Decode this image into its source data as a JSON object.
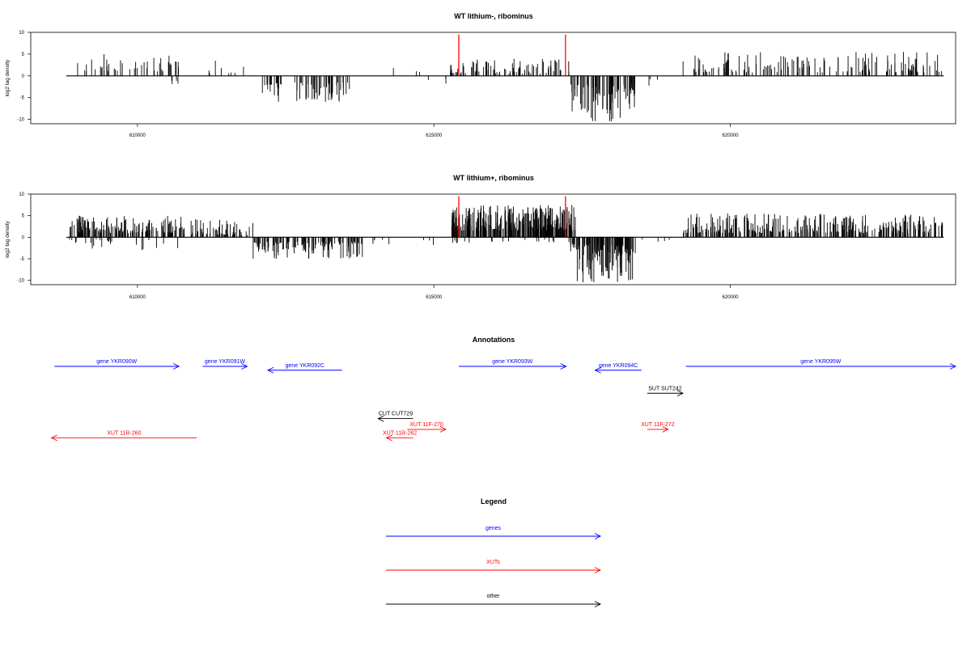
{
  "chart_data": [
    {
      "type": "bar",
      "title": "WT lithium-, ribominus",
      "ylabel": "log2 tag density",
      "ylim": [
        -11,
        10
      ],
      "yticks": [
        10,
        5,
        0,
        -5,
        -10
      ],
      "xlim": [
        608200,
        623800
      ],
      "xticks": [
        610000,
        615000,
        620000
      ],
      "xtick_labels": [
        "610000",
        "615000",
        "620000"
      ],
      "baseline": [
        608800,
        623600
      ],
      "markers": [
        {
          "x": 615420,
          "top": 9.5,
          "color": "#ff0000"
        },
        {
          "x": 617220,
          "top": 9.5,
          "color": "#ff0000"
        }
      ],
      "regions": [
        {
          "start": 608850,
          "end": 610700,
          "dir": 1,
          "lo": 1,
          "hi": 5,
          "n": 45,
          "seed": 11
        },
        {
          "start": 610550,
          "end": 610800,
          "dir": -1,
          "lo": 1,
          "hi": 3.5,
          "n": 4,
          "seed": 12
        },
        {
          "start": 611200,
          "end": 611800,
          "dir": 1,
          "lo": 0.5,
          "hi": 3.5,
          "n": 8,
          "seed": 13
        },
        {
          "start": 612100,
          "end": 613600,
          "dir": -1,
          "lo": 1.5,
          "hi": 6,
          "n": 70,
          "seed": 14
        },
        {
          "start": 614200,
          "end": 614900,
          "dir": 1,
          "lo": 0.5,
          "hi": 2,
          "n": 3,
          "seed": 15
        },
        {
          "start": 614900,
          "end": 615300,
          "dir": -1,
          "lo": 0.5,
          "hi": 2,
          "n": 3,
          "seed": 16
        },
        {
          "start": 615250,
          "end": 617300,
          "dir": 1,
          "lo": 0.5,
          "hi": 4,
          "n": 90,
          "seed": 17
        },
        {
          "start": 617300,
          "end": 618400,
          "dir": -1,
          "lo": 2,
          "hi": 10.5,
          "n": 80,
          "seed": 18
        },
        {
          "start": 618500,
          "end": 618900,
          "dir": -1,
          "lo": 0.5,
          "hi": 2.5,
          "n": 3,
          "seed": 19
        },
        {
          "start": 619200,
          "end": 623600,
          "dir": 1,
          "lo": 0.8,
          "hi": 5.5,
          "n": 150,
          "seed": 20
        }
      ]
    },
    {
      "type": "bar",
      "title": "WT lithium+, ribominus",
      "ylabel": "log2 tag density",
      "ylim": [
        -11,
        10
      ],
      "yticks": [
        10,
        5,
        0,
        -5,
        -10
      ],
      "xlim": [
        608200,
        623800
      ],
      "xticks": [
        610000,
        615000,
        620000
      ],
      "xtick_labels": [
        "610000",
        "615000",
        "620000"
      ],
      "baseline": [
        608800,
        623600
      ],
      "markers": [
        {
          "x": 615420,
          "top": 9.5,
          "color": "#ff0000"
        },
        {
          "x": 617220,
          "top": 9.5,
          "color": "#ff0000"
        }
      ],
      "regions": [
        {
          "start": 608850,
          "end": 610800,
          "dir": 1,
          "lo": 1,
          "hi": 5,
          "n": 160,
          "seed": 21
        },
        {
          "start": 608850,
          "end": 610800,
          "dir": -1,
          "lo": 0.5,
          "hi": 3,
          "n": 25,
          "seed": 22
        },
        {
          "start": 610900,
          "end": 611950,
          "dir": 1,
          "lo": 0.5,
          "hi": 4.5,
          "n": 60,
          "seed": 23
        },
        {
          "start": 611950,
          "end": 613800,
          "dir": -1,
          "lo": 1,
          "hi": 5,
          "n": 120,
          "seed": 24
        },
        {
          "start": 613800,
          "end": 615100,
          "dir": -1,
          "lo": 0.5,
          "hi": 2,
          "n": 8,
          "seed": 25
        },
        {
          "start": 615300,
          "end": 617400,
          "dir": 1,
          "lo": 1.5,
          "hi": 7.5,
          "n": 320,
          "seed": 26
        },
        {
          "start": 615300,
          "end": 617400,
          "dir": -1,
          "lo": 0.5,
          "hi": 1.5,
          "n": 20,
          "seed": 27
        },
        {
          "start": 617300,
          "end": 618400,
          "dir": -1,
          "lo": 1.5,
          "hi": 10.5,
          "n": 130,
          "seed": 28
        },
        {
          "start": 618500,
          "end": 619000,
          "dir": -1,
          "lo": 0.5,
          "hi": 1.5,
          "n": 4,
          "seed": 29
        },
        {
          "start": 619200,
          "end": 623600,
          "dir": 1,
          "lo": 1,
          "hi": 5.5,
          "n": 300,
          "seed": 30
        }
      ]
    }
  ],
  "annotations": {
    "title": "Annotations",
    "xlim": [
      608200,
      623800
    ],
    "features": [
      {
        "label": "gene YKR090W",
        "start": 608600,
        "end": 610700,
        "dir": 1,
        "row": 0,
        "color": "#0000ff"
      },
      {
        "label": "gene YKR091W",
        "start": 611100,
        "end": 611850,
        "dir": 1,
        "row": 0,
        "color": "#0000ff"
      },
      {
        "label": "gene YKR092C",
        "start": 612200,
        "end": 613450,
        "dir": -1,
        "row": 0.5,
        "color": "#0000ff"
      },
      {
        "label": "gene YKR093W",
        "start": 615420,
        "end": 617230,
        "dir": 1,
        "row": 0,
        "color": "#0000ff"
      },
      {
        "label": "gene YKR094C",
        "start": 617720,
        "end": 618500,
        "dir": -1,
        "row": 0.5,
        "color": "#0000ff"
      },
      {
        "label": "gene YKR095W",
        "start": 619250,
        "end": 623800,
        "dir": 1,
        "row": 0,
        "color": "#0000ff"
      },
      {
        "label": "SUT SUT242",
        "start": 618600,
        "end": 619200,
        "dir": 1,
        "row": 3.5,
        "color": "#000000"
      },
      {
        "label": "CUT CUT729",
        "start": 614060,
        "end": 614650,
        "dir": -1,
        "row": 6.8,
        "color": "#000000"
      },
      {
        "label": "XUT 11F-270",
        "start": 614550,
        "end": 615200,
        "dir": 1,
        "row": 8.2,
        "color": "#ff0000"
      },
      {
        "label": "XUT 11R-262",
        "start": 614200,
        "end": 614650,
        "dir": -1,
        "row": 9.3,
        "color": "#ff0000"
      },
      {
        "label": "XUT 11F-272",
        "start": 618600,
        "end": 618950,
        "dir": 1,
        "row": 8.2,
        "color": "#ff0000"
      },
      {
        "label": "XUT 11R-260",
        "start": 608550,
        "end": 611000,
        "dir": -1,
        "row": 9.3,
        "color": "#ff0000"
      }
    ]
  },
  "legend": {
    "title": "Legend",
    "items": [
      {
        "label": "genes",
        "color": "#0000ff"
      },
      {
        "label": "XUTs",
        "color": "#ff0000"
      },
      {
        "label": "other",
        "color": "#000000"
      }
    ]
  }
}
